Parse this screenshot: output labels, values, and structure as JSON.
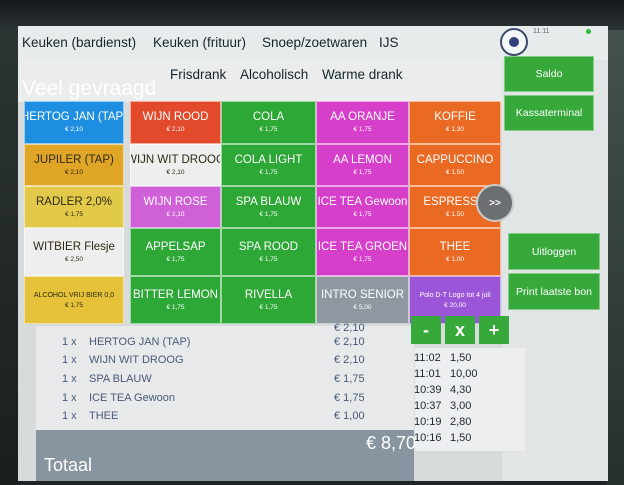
{
  "top_categories": [
    "Keuken (bardienst)",
    "Keuken (frituur)",
    "Snoep/zoetwaren",
    "IJS"
  ],
  "clock": "11:11",
  "active_category": "Veel gevraagd",
  "categories": [
    "Frisdrank",
    "Alcoholisch",
    "Warme drank"
  ],
  "products": [
    {
      "name": "HERTOG JAN (TAP)",
      "price": "€ 2,10",
      "color": "#1e8fe0"
    },
    {
      "name": "WIJN ROOD",
      "price": "€ 2,10",
      "color": "#e24a2b"
    },
    {
      "name": "COLA",
      "price": "€ 1,75",
      "color": "#2da836"
    },
    {
      "name": "AA ORANJE",
      "price": "€ 1,75",
      "color": "#d63fc9"
    },
    {
      "name": "KOFFIE",
      "price": "€ 1,30",
      "color": "#ea6a23"
    },
    {
      "name": "JUPILER (TAP)",
      "price": "€ 2,10",
      "color": "#dfa526"
    },
    {
      "name": "WIJN WIT DROOG",
      "price": "€ 2,10",
      "color": "#eeeeee"
    },
    {
      "name": "COLA LIGHT",
      "price": "€ 1,75",
      "color": "#2da836"
    },
    {
      "name": "AA LEMON",
      "price": "€ 1,75",
      "color": "#d63fc9"
    },
    {
      "name": "CAPPUCCINO",
      "price": "€ 1,50",
      "color": "#ea6a23"
    },
    {
      "name": "RADLER 2,0%",
      "price": "€ 1,75",
      "color": "#e2c94a"
    },
    {
      "name": "WIJN ROSE",
      "price": "€ 2,10",
      "color": "#cf60d8"
    },
    {
      "name": "SPA BLAUW",
      "price": "€ 1,75",
      "color": "#2da836"
    },
    {
      "name": "ICE TEA Gewoon",
      "price": "€ 1,75",
      "color": "#d63fc9"
    },
    {
      "name": "ESPRESSO",
      "price": "€ 1,50",
      "color": "#ea6a23"
    },
    {
      "name": "WITBIER Flesje",
      "price": "€ 2,50",
      "color": "#eeeeee"
    },
    {
      "name": "APPELSAP",
      "price": "€ 1,75",
      "color": "#2da836"
    },
    {
      "name": "SPA ROOD",
      "price": "€ 1,75",
      "color": "#2da836"
    },
    {
      "name": "ICE TEA GROEN",
      "price": "€ 1,75",
      "color": "#d63fc9"
    },
    {
      "name": "THEE",
      "price": "€ 1,00",
      "color": "#ea6a23"
    },
    {
      "name": "ALCOHOL VRIJ BIER 0,0",
      "price": "€ 1,75",
      "color": "#e6c23a"
    },
    {
      "name": "BITTER LEMON",
      "price": "€ 1,75",
      "color": "#2da836"
    },
    {
      "name": "RIVELLA",
      "price": "€ 1,75",
      "color": "#2da836"
    },
    {
      "name": "INTRO SENIOR",
      "price": "€ 5,00",
      "color": "#8f98a0"
    },
    {
      "name": "Polo D-T Logo tot 4 juli",
      "price": "€ 20,00",
      "color": "#9a55d8"
    }
  ],
  "next_page_label": ">>",
  "side_buttons": {
    "saldo": "Saldo",
    "kassaterminal": "Kassaterminal",
    "uitloggen": "Uitloggen",
    "print": "Print laatste bon"
  },
  "order_lines": [
    {
      "qty": "1 x",
      "name": "HERTOG JAN (TAP)",
      "price": "€ 2,10"
    },
    {
      "qty": "1 x",
      "name": "WIJN WIT DROOG",
      "price": "€ 2,10"
    },
    {
      "qty": "1 x",
      "name": "SPA BLAUW",
      "price": "€ 1,75"
    },
    {
      "qty": "1 x",
      "name": "ICE TEA Gewoon",
      "price": "€ 1,75"
    },
    {
      "qty": "1 x",
      "name": "THEE",
      "price": "€ 1,00"
    }
  ],
  "order_header_price": "€ 2,10",
  "qty_buttons": {
    "minus": "-",
    "times": "x",
    "plus": "+"
  },
  "history": [
    {
      "time": "11:02",
      "amount": "1,50"
    },
    {
      "time": "11:01",
      "amount": "10,00"
    },
    {
      "time": "10:39",
      "amount": "4,30"
    },
    {
      "time": "10:37",
      "amount": "3,00"
    },
    {
      "time": "10:19",
      "amount": "2,80"
    },
    {
      "time": "10:16",
      "amount": "1,50"
    }
  ],
  "total_label": "Totaal",
  "total_value": "€ 8,70"
}
